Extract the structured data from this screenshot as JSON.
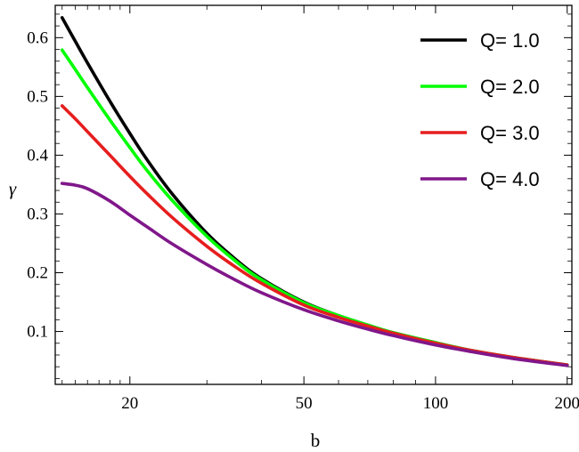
{
  "chart_data": {
    "type": "line",
    "xlabel": "b",
    "ylabel": "γ",
    "x_scale": "log",
    "xlim": [
      13.5,
      205
    ],
    "ylim": [
      0.01,
      0.655
    ],
    "x_ticks": [
      {
        "value": 20,
        "label": "20"
      },
      {
        "value": 50,
        "label": "50"
      },
      {
        "value": 100,
        "label": "100"
      },
      {
        "value": 200,
        "label": "200"
      }
    ],
    "x_minor_ticks": [
      14,
      15,
      16,
      17,
      18,
      19,
      30,
      40,
      60,
      70,
      80,
      90,
      150
    ],
    "y_ticks": [
      {
        "value": 0.1,
        "label": "0.1"
      },
      {
        "value": 0.2,
        "label": "0.2"
      },
      {
        "value": 0.3,
        "label": "0.3"
      },
      {
        "value": 0.4,
        "label": "0.4"
      },
      {
        "value": 0.5,
        "label": "0.5"
      },
      {
        "value": 0.6,
        "label": "0.6"
      }
    ],
    "y_minor_step": 0.02,
    "legend_position": "top-right",
    "grid": false,
    "series": [
      {
        "name": "Q= 1.0",
        "color": "#000000",
        "points": [
          [
            14,
            0.634
          ],
          [
            15,
            0.594
          ],
          [
            16,
            0.557
          ],
          [
            18,
            0.492
          ],
          [
            20,
            0.437
          ],
          [
            22,
            0.39
          ],
          [
            25,
            0.334
          ],
          [
            30,
            0.267
          ],
          [
            35,
            0.222
          ],
          [
            40,
            0.19
          ],
          [
            50,
            0.15
          ],
          [
            60,
            0.127
          ],
          [
            70,
            0.111
          ],
          [
            80,
            0.098
          ],
          [
            100,
            0.081
          ],
          [
            120,
            0.068
          ],
          [
            150,
            0.056
          ],
          [
            200,
            0.043
          ]
        ]
      },
      {
        "name": "Q= 2.0",
        "color": "#00ff00",
        "points": [
          [
            14,
            0.579
          ],
          [
            15,
            0.546
          ],
          [
            16,
            0.515
          ],
          [
            18,
            0.46
          ],
          [
            20,
            0.413
          ],
          [
            22,
            0.372
          ],
          [
            25,
            0.323
          ],
          [
            30,
            0.262
          ],
          [
            35,
            0.219
          ],
          [
            40,
            0.188
          ],
          [
            50,
            0.149
          ],
          [
            60,
            0.127
          ],
          [
            70,
            0.111
          ],
          [
            80,
            0.098
          ],
          [
            100,
            0.081
          ],
          [
            120,
            0.068
          ],
          [
            150,
            0.056
          ],
          [
            200,
            0.043
          ]
        ]
      },
      {
        "name": "Q= 3.0",
        "color": "#e61e1e",
        "points": [
          [
            14,
            0.484
          ],
          [
            15,
            0.462
          ],
          [
            16,
            0.44
          ],
          [
            18,
            0.4
          ],
          [
            20,
            0.364
          ],
          [
            22,
            0.333
          ],
          [
            25,
            0.294
          ],
          [
            30,
            0.245
          ],
          [
            35,
            0.209
          ],
          [
            40,
            0.182
          ],
          [
            50,
            0.145
          ],
          [
            60,
            0.124
          ],
          [
            70,
            0.109
          ],
          [
            80,
            0.097
          ],
          [
            100,
            0.08
          ],
          [
            120,
            0.068
          ],
          [
            150,
            0.056
          ],
          [
            200,
            0.043
          ]
        ]
      },
      {
        "name": "Q= 4.0",
        "color": "#80178a",
        "points": [
          [
            14,
            0.352
          ],
          [
            15,
            0.349
          ],
          [
            16,
            0.343
          ],
          [
            18,
            0.322
          ],
          [
            20,
            0.298
          ],
          [
            22,
            0.277
          ],
          [
            25,
            0.249
          ],
          [
            30,
            0.214
          ],
          [
            35,
            0.187
          ],
          [
            40,
            0.166
          ],
          [
            50,
            0.137
          ],
          [
            60,
            0.118
          ],
          [
            70,
            0.104
          ],
          [
            80,
            0.093
          ],
          [
            100,
            0.077
          ],
          [
            120,
            0.066
          ],
          [
            150,
            0.054
          ],
          [
            200,
            0.042
          ]
        ]
      }
    ]
  }
}
